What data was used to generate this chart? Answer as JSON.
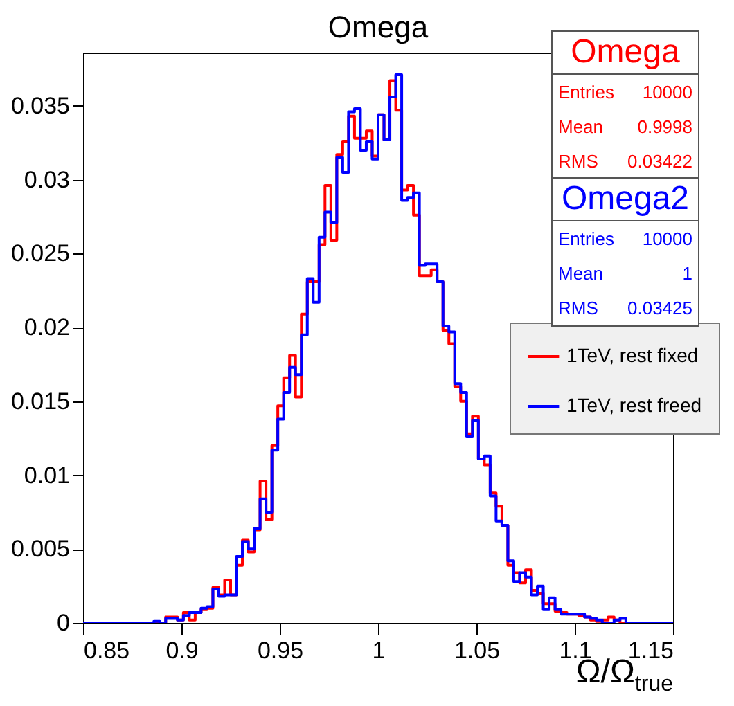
{
  "chart_data": {
    "type": "histogram",
    "title": "Omega",
    "xlabel": "Ω/Ω$_{true}$",
    "bins": [
      0.85,
      0.853,
      0.856,
      0.859,
      0.862,
      0.865,
      0.868,
      0.871,
      0.874,
      0.877,
      0.88,
      0.883,
      0.886,
      0.889,
      0.892,
      0.895,
      0.898,
      0.901,
      0.904,
      0.907,
      0.91,
      0.913,
      0.916,
      0.919,
      0.922,
      0.925,
      0.928,
      0.931,
      0.934,
      0.937,
      0.94,
      0.943,
      0.946,
      0.949,
      0.952,
      0.955,
      0.958,
      0.961,
      0.964,
      0.967,
      0.97,
      0.973,
      0.976,
      0.979,
      0.982,
      0.985,
      0.988,
      0.991,
      0.994,
      0.997,
      1.0,
      1.003,
      1.006,
      1.009,
      1.012,
      1.015,
      1.018,
      1.021,
      1.024,
      1.027,
      1.03,
      1.033,
      1.036,
      1.039,
      1.042,
      1.045,
      1.048,
      1.051,
      1.054,
      1.057,
      1.06,
      1.063,
      1.066,
      1.069,
      1.072,
      1.075,
      1.078,
      1.081,
      1.084,
      1.087,
      1.09,
      1.093,
      1.096,
      1.099,
      1.102,
      1.105,
      1.108,
      1.111,
      1.114,
      1.117,
      1.12,
      1.123,
      1.126,
      1.129,
      1.132,
      1.135,
      1.138,
      1.141,
      1.144,
      1.147,
      1.15
    ],
    "series": [
      {
        "name": "1TeV, rest fixed",
        "color": "#ff0000",
        "values": [
          0,
          0,
          0,
          0,
          0,
          0,
          0,
          0,
          0,
          0,
          0,
          0,
          0,
          0,
          0.0004,
          0.0004,
          0.0002,
          0.0007,
          0.0002,
          0.0007,
          0.0009,
          0.001,
          0.0024,
          0.0019,
          0.0029,
          0.0019,
          0.0039,
          0.0056,
          0.0048,
          0.0063,
          0.0096,
          0.007,
          0.012,
          0.0147,
          0.0166,
          0.0181,
          0.0153,
          0.0209,
          0.0231,
          0.0231,
          0.0256,
          0.0296,
          0.0259,
          0.0317,
          0.0326,
          0.0343,
          0.0328,
          0.0328,
          0.0333,
          0.0316,
          0.0344,
          0.0327,
          0.0367,
          0.0347,
          0.0293,
          0.0296,
          0.0276,
          0.0235,
          0.0235,
          0.0239,
          0.0231,
          0.0198,
          0.0189,
          0.016,
          0.015,
          0.0128,
          0.014,
          0.0111,
          0.0107,
          0.0088,
          0.0079,
          0.0066,
          0.0039,
          0.0034,
          0.0027,
          0.0036,
          0.0022,
          0.002,
          0.0013,
          0.0013,
          0.0008,
          0.0007,
          0.0006,
          0.0006,
          0.0005,
          0.0004,
          0.0002,
          0.0001,
          0.0002,
          0.0004,
          0.0002,
          0,
          0,
          0,
          0,
          0,
          0,
          0,
          0,
          0
        ]
      },
      {
        "name": "1TeV, rest freed",
        "color": "#0000ff",
        "values": [
          0,
          0,
          0,
          0,
          0,
          0,
          0,
          0,
          0,
          0,
          0,
          0,
          0.0001,
          0,
          0.0003,
          0.0003,
          0.0002,
          0.0005,
          0.0007,
          0.0007,
          0.001,
          0.0011,
          0.0023,
          0.0018,
          0.0019,
          0.0019,
          0.0045,
          0.0055,
          0.005,
          0.0064,
          0.0084,
          0.0075,
          0.0117,
          0.0138,
          0.0156,
          0.0173,
          0.0168,
          0.0195,
          0.0233,
          0.0217,
          0.0261,
          0.0278,
          0.0271,
          0.0315,
          0.0305,
          0.0346,
          0.0348,
          0.032,
          0.0326,
          0.0314,
          0.0344,
          0.0327,
          0.0356,
          0.0371,
          0.0286,
          0.0288,
          0.0291,
          0.0242,
          0.0243,
          0.0243,
          0.0231,
          0.0201,
          0.0197,
          0.0162,
          0.0156,
          0.0126,
          0.0137,
          0.0111,
          0.0113,
          0.0086,
          0.0069,
          0.0066,
          0.0042,
          0.0028,
          0.0034,
          0.0031,
          0.0019,
          0.0025,
          0.0009,
          0.0017,
          0.0009,
          0.0006,
          0.0006,
          0.0006,
          0.0006,
          0.0004,
          0.0003,
          0.0002,
          0,
          0,
          0.0002,
          0.0003,
          0,
          0,
          0,
          0,
          0,
          0,
          0,
          0
        ]
      }
    ],
    "xlim": [
      0.85,
      1.15
    ],
    "xticks": [
      0.85,
      0.9,
      0.95,
      1,
      1.05,
      1.1,
      1.15
    ],
    "ylim": [
      0,
      0.0386
    ],
    "yticks": [
      0,
      0.005,
      0.01,
      0.015,
      0.02,
      0.025,
      0.03,
      0.035
    ],
    "legend": "right",
    "annotations": [
      "Omega",
      "Entries",
      "10000",
      "Mean",
      "0.9998",
      "RMS",
      "0.03422",
      "Omega2",
      "Entries",
      "10000",
      "Mean",
      "1",
      "RMS",
      "0.03425"
    ]
  }
}
